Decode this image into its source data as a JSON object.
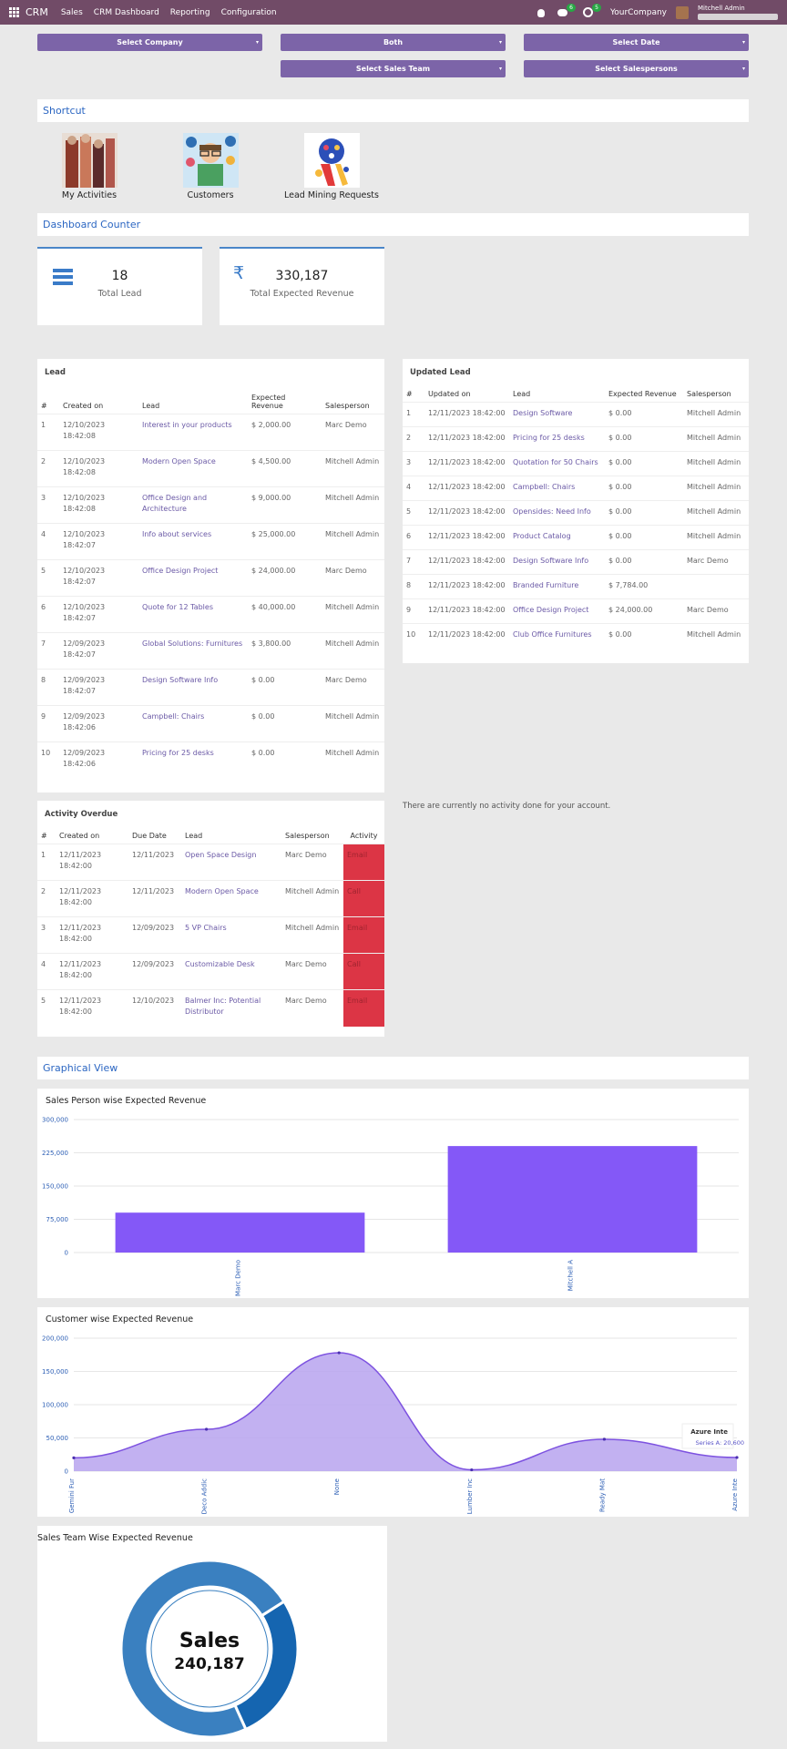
{
  "navbar": {
    "brand": "CRM",
    "menu": [
      "Sales",
      "CRM Dashboard",
      "Reporting",
      "Configuration"
    ],
    "chat_badge": "6",
    "activity_badge": "5",
    "company": "YourCompany",
    "user": "Mitchell Admin"
  },
  "filters": {
    "company": "Select Company",
    "both": "Both",
    "date": "Select Date",
    "sales_team": "Select Sales Team",
    "salespersons": "Select Salespersons"
  },
  "shortcut": {
    "title": "Shortcut",
    "items": [
      "My Activities",
      "Customers",
      "Lead Mining Requests"
    ]
  },
  "dashboard_counter": {
    "title": "Dashboard Counter",
    "total_lead_value": "18",
    "total_lead_label": "Total Lead",
    "revenue_value": "330,187",
    "revenue_label": "Total Expected Revenue",
    "currency_symbol": "₹"
  },
  "lead_table": {
    "title": "Lead",
    "headers": [
      "#",
      "Created on",
      "Lead",
      "Expected Revenue",
      "Salesperson"
    ],
    "rows": [
      [
        "1",
        "12/10/2023 18:42:08",
        "Interest in your products",
        "$ 2,000.00",
        "Marc Demo"
      ],
      [
        "2",
        "12/10/2023 18:42:08",
        "Modern Open Space",
        "$ 4,500.00",
        "Mitchell Admin"
      ],
      [
        "3",
        "12/10/2023 18:42:08",
        "Office Design and Architecture",
        "$ 9,000.00",
        "Mitchell Admin"
      ],
      [
        "4",
        "12/10/2023 18:42:07",
        "Info about services",
        "$ 25,000.00",
        "Mitchell Admin"
      ],
      [
        "5",
        "12/10/2023 18:42:07",
        "Office Design Project",
        "$ 24,000.00",
        "Marc Demo"
      ],
      [
        "6",
        "12/10/2023 18:42:07",
        "Quote for 12 Tables",
        "$ 40,000.00",
        "Mitchell Admin"
      ],
      [
        "7",
        "12/09/2023 18:42:07",
        "Global Solutions: Furnitures",
        "$ 3,800.00",
        "Mitchell Admin"
      ],
      [
        "8",
        "12/09/2023 18:42:07",
        "Design Software Info",
        "$ 0.00",
        "Marc Demo"
      ],
      [
        "9",
        "12/09/2023 18:42:06",
        "Campbell: Chairs",
        "$ 0.00",
        "Mitchell Admin"
      ],
      [
        "10",
        "12/09/2023 18:42:06",
        "Pricing for 25 desks",
        "$ 0.00",
        "Mitchell Admin"
      ]
    ]
  },
  "updated_table": {
    "title": "Updated Lead",
    "headers": [
      "#",
      "Updated on",
      "Lead",
      "Expected Revenue",
      "Salesperson"
    ],
    "rows": [
      [
        "1",
        "12/11/2023 18:42:00",
        "Design Software",
        "$ 0.00",
        "Mitchell Admin"
      ],
      [
        "2",
        "12/11/2023 18:42:00",
        "Pricing for 25 desks",
        "$ 0.00",
        "Mitchell Admin"
      ],
      [
        "3",
        "12/11/2023 18:42:00",
        "Quotation for 50 Chairs",
        "$ 0.00",
        "Mitchell Admin"
      ],
      [
        "4",
        "12/11/2023 18:42:00",
        "Campbell: Chairs",
        "$ 0.00",
        "Mitchell Admin"
      ],
      [
        "5",
        "12/11/2023 18:42:00",
        "Opensides: Need Info",
        "$ 0.00",
        "Mitchell Admin"
      ],
      [
        "6",
        "12/11/2023 18:42:00",
        "Product Catalog",
        "$ 0.00",
        "Mitchell Admin"
      ],
      [
        "7",
        "12/11/2023 18:42:00",
        "Design Software Info",
        "$ 0.00",
        "Marc Demo"
      ],
      [
        "8",
        "12/11/2023 18:42:00",
        "Branded Furniture",
        "$ 7,784.00",
        ""
      ],
      [
        "9",
        "12/11/2023 18:42:00",
        "Office Design Project",
        "$ 24,000.00",
        "Marc Demo"
      ],
      [
        "10",
        "12/11/2023 18:42:00",
        "Club Office Furnitures",
        "$ 0.00",
        "Mitchell Admin"
      ]
    ]
  },
  "activity_overdue": {
    "title": "Activity Overdue",
    "headers": [
      "#",
      "Created on",
      "Due Date",
      "Lead",
      "Salesperson",
      "Activity"
    ],
    "rows": [
      [
        "1",
        "12/11/2023 18:42:00",
        "12/11/2023",
        "Open Space Design",
        "Marc Demo",
        "Email"
      ],
      [
        "2",
        "12/11/2023 18:42:00",
        "12/11/2023",
        "Modern Open Space",
        "Mitchell Admin",
        "Call"
      ],
      [
        "3",
        "12/11/2023 18:42:00",
        "12/09/2023",
        "5 VP Chairs",
        "Mitchell Admin",
        "Email"
      ],
      [
        "4",
        "12/11/2023 18:42:00",
        "12/09/2023",
        "Customizable Desk",
        "Marc Demo",
        "Call"
      ],
      [
        "5",
        "12/11/2023 18:42:00",
        "12/10/2023",
        "Balmer Inc: Potential Distributor",
        "Marc Demo",
        "Email"
      ]
    ]
  },
  "no_activity_text": "There are currently no activity done for your account.",
  "graphical_view": {
    "title": "Graphical View"
  },
  "chart_data": [
    {
      "type": "bar",
      "title": "Sales Person wise Expected Revenue",
      "categories": [
        "Marc Demo",
        "Mitchell A"
      ],
      "values": [
        90000,
        240187
      ],
      "ylim": [
        0,
        300000
      ],
      "yticks": [
        "300,000",
        "225,000",
        "150,000",
        "75,000",
        "0"
      ],
      "color": "#8458f7"
    },
    {
      "type": "area",
      "title": "Customer wise Expected Revenue",
      "categories": [
        "Gemini Fur",
        "Deco Addic",
        "None",
        "Lumber Inc",
        "Ready Mat",
        "Azure Inte"
      ],
      "values": [
        20000,
        63000,
        178000,
        2000,
        48000,
        20600
      ],
      "ylim": [
        0,
        200000
      ],
      "yticks": [
        "200,000",
        "150,000",
        "100,000",
        "50,000",
        "0"
      ],
      "tooltip_title": "Azure Inte",
      "tooltip_value": "Series A: 20,600",
      "color": "#7d52e0"
    },
    {
      "type": "pie",
      "title": "Sales Team Wise Expected Revenue",
      "center_label": "Sales",
      "center_value": "240,187",
      "slices": [
        {
          "label": "Sales",
          "value": 240187,
          "color": "#3a80c0"
        },
        {
          "label": "",
          "value": 90000,
          "color": "#1565b0"
        }
      ]
    }
  ]
}
